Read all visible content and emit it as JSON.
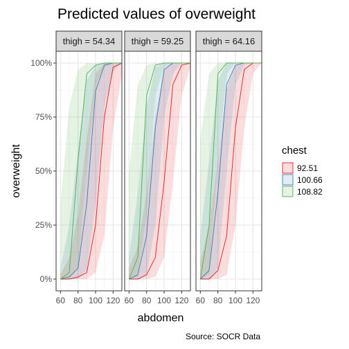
{
  "chart_data": {
    "type": "line",
    "title": "Predicted values of overweight",
    "xlabel": "abdomen",
    "ylabel": "overweight",
    "caption": "Source: SOCR Data",
    "xlim": [
      55,
      130
    ],
    "ylim": [
      0,
      1
    ],
    "x_ticks": [
      60,
      80,
      100,
      120
    ],
    "y_ticks": [
      0,
      0.25,
      0.5,
      0.75,
      1.0
    ],
    "y_tick_labels": [
      "0%",
      "25%",
      "50%",
      "75%",
      "100%"
    ],
    "x_tick_labels": [
      "60",
      "80",
      "100",
      "120"
    ],
    "grid": true,
    "legend": {
      "title": "chest",
      "position": "right"
    },
    "x": [
      60,
      70,
      80,
      90,
      100,
      110,
      120,
      130
    ],
    "panels": [
      {
        "strip": "thigh = 54.34",
        "series": [
          {
            "name": "92.51",
            "color": "#e41a1c",
            "values": [
              0.0,
              0.0,
              0.01,
              0.03,
              0.25,
              0.75,
              0.98,
              1.0
            ],
            "lower": [
              0.0,
              0.0,
              0.0,
              0.0,
              0.03,
              0.2,
              0.7,
              0.95
            ],
            "upper": [
              0.02,
              0.1,
              0.3,
              0.65,
              0.95,
              1.0,
              1.0,
              1.0
            ]
          },
          {
            "name": "100.66",
            "color": "#377eb8",
            "values": [
              0.0,
              0.01,
              0.05,
              0.35,
              0.87,
              0.99,
              1.0,
              1.0
            ],
            "lower": [
              0.0,
              0.0,
              0.0,
              0.04,
              0.35,
              0.8,
              0.96,
              1.0
            ],
            "upper": [
              0.05,
              0.25,
              0.6,
              0.92,
              0.99,
              1.0,
              1.0,
              1.0
            ]
          },
          {
            "name": "108.82",
            "color": "#4daf4a",
            "values": [
              0.0,
              0.03,
              0.55,
              0.95,
              0.99,
              1.0,
              1.0,
              1.0
            ],
            "lower": [
              0.0,
              0.0,
              0.05,
              0.5,
              0.9,
              0.98,
              1.0,
              1.0
            ],
            "upper": [
              0.35,
              0.8,
              0.97,
              1.0,
              1.0,
              1.0,
              1.0,
              1.0
            ]
          }
        ]
      },
      {
        "strip": "thigh = 59.25",
        "series": [
          {
            "name": "92.51",
            "color": "#e41a1c",
            "values": [
              0.0,
              0.0,
              0.02,
              0.1,
              0.45,
              0.9,
              0.99,
              1.0
            ],
            "lower": [
              0.0,
              0.0,
              0.0,
              0.01,
              0.1,
              0.45,
              0.85,
              0.98
            ],
            "upper": [
              0.05,
              0.15,
              0.4,
              0.75,
              0.97,
              1.0,
              1.0,
              1.0
            ]
          },
          {
            "name": "100.66",
            "color": "#377eb8",
            "values": [
              0.0,
              0.02,
              0.2,
              0.7,
              0.97,
              1.0,
              1.0,
              1.0
            ],
            "lower": [
              0.0,
              0.0,
              0.02,
              0.25,
              0.75,
              0.95,
              1.0,
              1.0
            ],
            "upper": [
              0.1,
              0.4,
              0.8,
              0.98,
              1.0,
              1.0,
              1.0,
              1.0
            ]
          },
          {
            "name": "108.82",
            "color": "#4daf4a",
            "values": [
              0.0,
              0.1,
              0.85,
              0.99,
              1.0,
              1.0,
              1.0,
              1.0
            ],
            "lower": [
              0.0,
              0.01,
              0.3,
              0.85,
              0.98,
              1.0,
              1.0,
              1.0
            ],
            "upper": [
              0.5,
              0.9,
              0.99,
              1.0,
              1.0,
              1.0,
              1.0,
              1.0
            ]
          }
        ]
      },
      {
        "strip": "thigh = 64.16",
        "series": [
          {
            "name": "92.51",
            "color": "#e41a1c",
            "values": [
              0.0,
              0.0,
              0.04,
              0.2,
              0.7,
              0.97,
              1.0,
              1.0
            ],
            "lower": [
              0.0,
              0.0,
              0.0,
              0.02,
              0.25,
              0.7,
              0.95,
              1.0
            ],
            "upper": [
              0.08,
              0.25,
              0.55,
              0.88,
              0.99,
              1.0,
              1.0,
              1.0
            ]
          },
          {
            "name": "100.66",
            "color": "#377eb8",
            "values": [
              0.0,
              0.04,
              0.4,
              0.9,
              0.99,
              1.0,
              1.0,
              1.0
            ],
            "lower": [
              0.0,
              0.0,
              0.05,
              0.5,
              0.9,
              0.99,
              1.0,
              1.0
            ],
            "upper": [
              0.2,
              0.55,
              0.92,
              1.0,
              1.0,
              1.0,
              1.0,
              1.0
            ]
          },
          {
            "name": "108.82",
            "color": "#4daf4a",
            "values": [
              0.0,
              0.25,
              0.95,
              1.0,
              1.0,
              1.0,
              1.0,
              1.0
            ],
            "lower": [
              0.0,
              0.02,
              0.55,
              0.95,
              1.0,
              1.0,
              1.0,
              1.0
            ],
            "upper": [
              0.65,
              0.95,
              1.0,
              1.0,
              1.0,
              1.0,
              1.0,
              1.0
            ]
          }
        ]
      }
    ]
  }
}
